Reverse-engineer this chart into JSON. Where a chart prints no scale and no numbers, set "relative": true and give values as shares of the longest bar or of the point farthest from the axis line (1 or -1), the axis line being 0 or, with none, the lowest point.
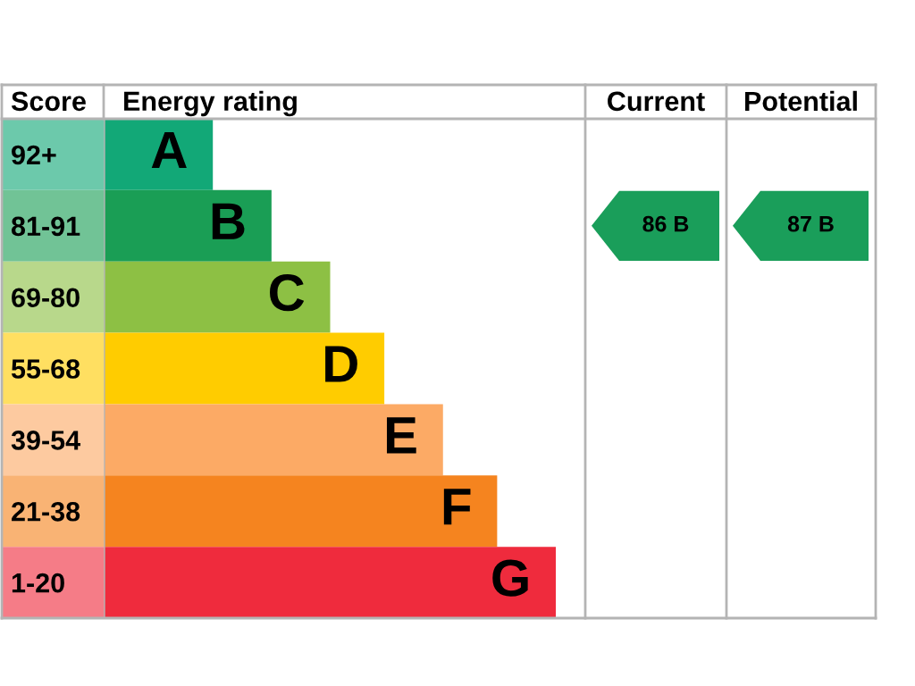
{
  "chart_data": [
    {
      "type": "bar",
      "orientation": "horizontal",
      "relative": true,
      "xlabel": "Energy rating",
      "ylabel": "Score",
      "categories": [
        "92+",
        "81-91",
        "69-80",
        "55-68",
        "39-54",
        "21-38",
        "1-20"
      ],
      "values": [
        0.24,
        0.37,
        0.5,
        0.62,
        0.75,
        0.87,
        1
      ],
      "colors": [
        "#12a877",
        "#1a9e55",
        "#8dc044",
        "#ffcc00",
        "#fcaa65",
        "#f5841f",
        "#ef2b3d"
      ],
      "tick_labels": "y",
      "annotations": [
        {
          "text": "A",
          "x": 0.24,
          "y": "92+"
        },
        {
          "text": "B",
          "x": 0.37,
          "y": "81-91"
        },
        {
          "text": "C",
          "x": 0.5,
          "y": "69-80"
        },
        {
          "text": "D",
          "x": 0.62,
          "y": "55-68"
        },
        {
          "text": "E",
          "x": 0.75,
          "y": "39-54"
        },
        {
          "text": "F",
          "x": 0.87,
          "y": "21-38"
        },
        {
          "text": "G",
          "x": 1,
          "y": "1-20"
        }
      ]
    },
    {
      "type": "other",
      "title": "Current",
      "categories": [
        null,
        null,
        null,
        null,
        null,
        null,
        null
      ],
      "values": [
        null,
        86,
        null,
        null,
        null,
        null,
        null
      ],
      "value_labels": [
        null,
        "86 B",
        null,
        null,
        null,
        null,
        null
      ],
      "color": "#1a9e5a"
    },
    {
      "type": "other",
      "title": "Potential",
      "categories": [
        null,
        null,
        null,
        null,
        null,
        null,
        null
      ],
      "values": [
        null,
        87,
        null,
        null,
        null,
        null,
        null
      ],
      "value_labels": [
        null,
        "87 B",
        null,
        null,
        null,
        null,
        null
      ],
      "color": "#1a9e5a"
    }
  ]
}
